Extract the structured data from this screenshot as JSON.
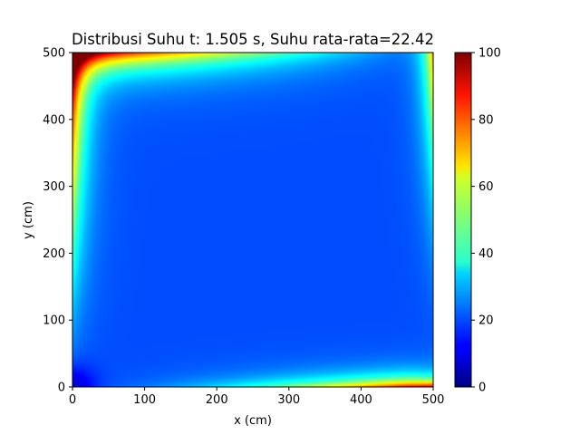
{
  "chart_data": {
    "type": "heatmap",
    "title": "Distribusi Suhu t: 1.505 s, Suhu rata-rata=22.42",
    "xlabel": "x (cm)",
    "ylabel": "y (cm)",
    "xlim": [
      0,
      500
    ],
    "ylim": [
      0,
      500
    ],
    "x_ticks": [
      0,
      100,
      200,
      300,
      400,
      500
    ],
    "y_ticks": [
      0,
      100,
      200,
      300,
      400,
      500
    ],
    "colormap": "jet",
    "colorbar": {
      "range": [
        0,
        100
      ],
      "ticks": [
        0,
        20,
        40,
        60,
        80,
        100
      ]
    },
    "interior_value": 20,
    "boundary_conditions": {
      "top": "~100 at left end, decaying to ~20 toward right end",
      "left": "~100 at top end, decaying to ~20 toward bottom end",
      "bottom": "~20 at left end, rising to ~100 at right end",
      "right": "~20 at bottom end, rising to ~70 near top end"
    },
    "mean_temperature": 22.42,
    "time_s": 1.505
  }
}
